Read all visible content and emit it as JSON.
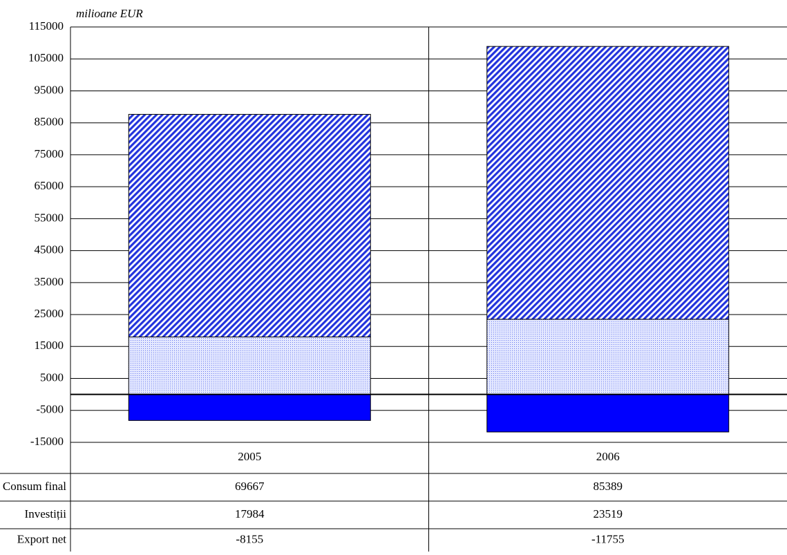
{
  "chart_data": {
    "type": "bar",
    "stacked": true,
    "y_label": "milioane EUR",
    "categories": [
      "2005",
      "2006"
    ],
    "series": [
      {
        "name": "Consum final",
        "color": "#0000ff",
        "pattern": "diagonal",
        "values": [
          69667,
          85389
        ]
      },
      {
        "name": "Investiții",
        "color": "#0000ff",
        "pattern": "dots",
        "values": [
          17984,
          23519
        ]
      },
      {
        "name": "Export net",
        "color": "#0000ff",
        "pattern": "solid",
        "values": [
          -8155,
          -11755
        ]
      }
    ],
    "stack_order": [
      1,
      0,
      2
    ],
    "ylim": [
      -15000,
      115000
    ],
    "yticks": [
      -15000,
      -5000,
      5000,
      15000,
      25000,
      35000,
      45000,
      55000,
      65000,
      75000,
      85000,
      95000,
      105000,
      115000
    ],
    "grid": true,
    "data_table": true
  }
}
